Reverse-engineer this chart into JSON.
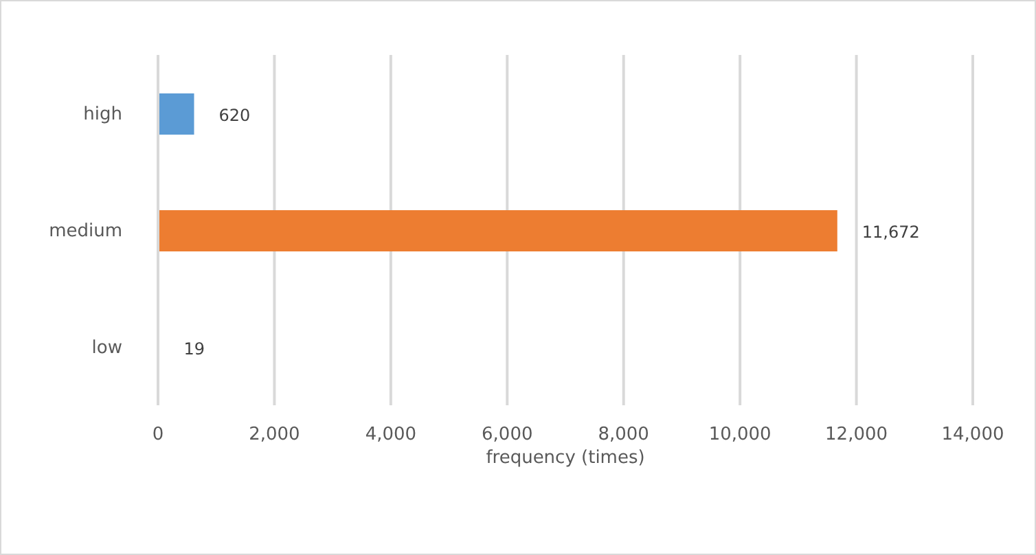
{
  "chart_data": {
    "type": "bar",
    "orientation": "horizontal",
    "xlabel": "frequency (times)",
    "categories": [
      "high",
      "medium",
      "low"
    ],
    "values": [
      620,
      11672,
      19
    ],
    "colors": [
      "#5b9bd5",
      "#ed7d31",
      "#a5a5a5"
    ],
    "value_labels": [
      "620",
      "11,672",
      "19"
    ],
    "xlim": [
      0,
      14000
    ],
    "xticks": [
      0,
      {
        "value": 2000,
        "label": "2,000"
      },
      {
        "value": 4000,
        "label": "4,000"
      },
      {
        "value": 6000,
        "label": "6,000"
      },
      {
        "value": 8000,
        "label": "8,000"
      },
      {
        "value": 10000,
        "label": "10,000"
      },
      {
        "value": 12000,
        "label": "12,000"
      },
      {
        "value": 14000,
        "label": "14,000"
      }
    ],
    "grid": "x",
    "legend": false
  }
}
